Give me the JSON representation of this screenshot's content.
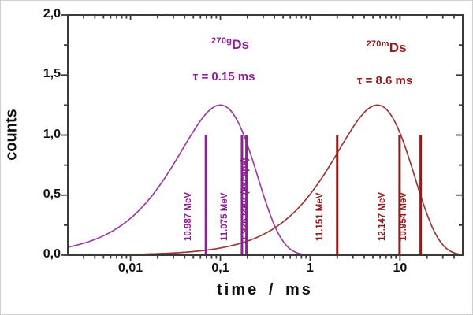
{
  "figure": {
    "background": "#ffffff",
    "frame_color": "#3a3a3a",
    "text_color": "#111111",
    "x_axis": {
      "label": "time / ms",
      "scale": "log",
      "range": [
        0.002,
        50
      ],
      "tick_values": [
        0.01,
        0.1,
        1,
        10
      ],
      "tick_labels": [
        "0,01",
        "0,1",
        "1",
        "10"
      ]
    },
    "y_axis": {
      "label": "counts",
      "scale": "linear",
      "range": [
        0,
        2
      ],
      "tick_values": [
        0,
        0.5,
        1,
        1.5,
        2
      ],
      "tick_labels": [
        "0,0",
        "0,5",
        "1,0",
        "1,5",
        "2,0"
      ],
      "minor_step": 0.25
    }
  },
  "chart_data": {
    "type": "line",
    "title": "",
    "xlabel": "time / ms",
    "ylabel": "counts",
    "xlim_ms": [
      0.002,
      50
    ],
    "ylim": [
      0,
      2
    ],
    "grid": false,
    "series": [
      {
        "id": "g",
        "label_sup": "270g",
        "label_base": "Ds",
        "tau_text": "τ = 0.15 ms",
        "tau_ms": 0.15,
        "color": "#8f1f97",
        "curve_color": "#9e3da2",
        "peak_time_ms": 0.1,
        "peak_counts": 1.25
      },
      {
        "id": "m",
        "label_sup": "270m",
        "label_base": "Ds",
        "tau_text": "τ = 8.6 ms",
        "tau_ms": 8.6,
        "color": "#8e1c1c",
        "curve_color": "#993838",
        "peak_time_ms": 5.6,
        "peak_counts": 1.25
      }
    ],
    "event_lines": [
      {
        "series": "g",
        "time_ms": 0.069,
        "height_counts": 1.0,
        "label": "10.987 MeV",
        "label_side": "left"
      },
      {
        "series": "g",
        "time_ms": 0.174,
        "height_counts": 1.0,
        "label": "11.075 MeV",
        "label_side": "left"
      },
      {
        "series": "g",
        "time_ms": 0.195,
        "height_counts": 1.0,
        "label": "1.926 MeV (escape)",
        "label_side": "right"
      },
      {
        "series": "m",
        "time_ms": 2.0,
        "height_counts": 1.0,
        "label": "11.151 MeV",
        "label_side": "left"
      },
      {
        "series": "m",
        "time_ms": 9.9,
        "height_counts": 1.0,
        "label": "12.147 MeV",
        "label_side": "left"
      },
      {
        "series": "m",
        "time_ms": 17.0,
        "height_counts": 1.0,
        "label": "10.954 MeV",
        "label_side": "left"
      }
    ]
  }
}
